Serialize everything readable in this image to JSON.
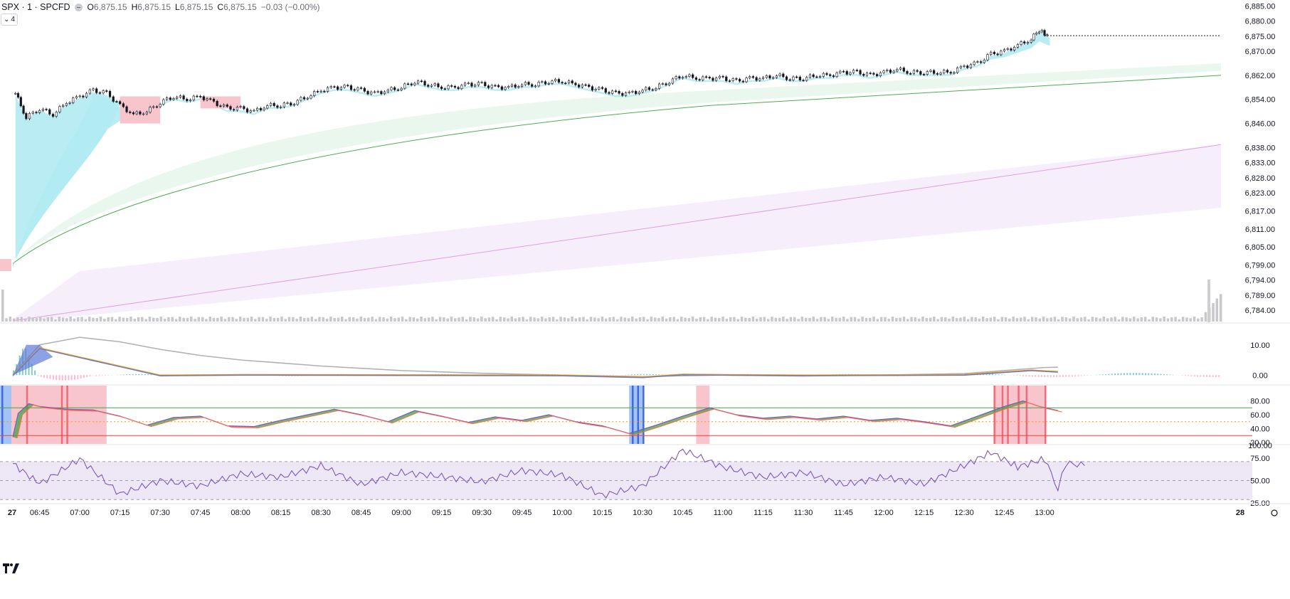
{
  "header": {
    "symbol": "SPX · 1 · SPCFD",
    "open_label": "O",
    "open_value": "6,875.15",
    "high_label": "H",
    "high_value": "6,875.15",
    "low_label": "L",
    "low_value": "6,875.15",
    "close_label": "C",
    "close_value": "6,875.15",
    "change": "−0.03 (−0.00%)",
    "collapse_label": "4"
  },
  "colors": {
    "up_fill": "#b2ebf2",
    "down_fill": "#f8c5cc",
    "green_band": "#eaf7ee",
    "green_line": "#4caf50",
    "purple_band": "#f6eefa",
    "purple_line": "#e39de8",
    "candle": "#131722",
    "macd_gray": "#b0b0b6",
    "macd_blue": "#5b7bd8",
    "macd_orange": "#ff9800",
    "rsi_purple": "#7e57c2",
    "obos_green": "#43a047",
    "obos_red": "#f44336"
  },
  "time_axis": {
    "labels": [
      "27",
      "06:45",
      "07:00",
      "07:15",
      "07:30",
      "07:45",
      "08:00",
      "08:15",
      "08:30",
      "08:45",
      "09:00",
      "09:15",
      "09:30",
      "09:45",
      "10:00",
      "10:15",
      "10:30",
      "10:45",
      "11:00",
      "11:15",
      "11:30",
      "11:45",
      "12:00",
      "12:15",
      "12:30",
      "12:45",
      "13:00",
      "28"
    ]
  },
  "chart_data": [
    {
      "type": "candlestick",
      "name": "price",
      "ylim": [
        6780,
        6887
      ],
      "y_ticks": [
        "6,885.00",
        "6,880.00",
        "6,875.00",
        "6,870.00",
        "6,862.00",
        "6,854.00",
        "6,846.00",
        "6,838.00",
        "6,833.00",
        "6,828.00",
        "6,823.00",
        "6,817.00",
        "6,811.00",
        "6,805.00",
        "6,799.00",
        "6,794.00",
        "6,789.00",
        "6,784.00"
      ],
      "y_tick_values": [
        6885,
        6880,
        6875,
        6870,
        6862,
        6854,
        6846,
        6838,
        6833,
        6828,
        6823,
        6817,
        6811,
        6805,
        6799,
        6794,
        6789,
        6784
      ],
      "time_range": [
        "06:35",
        "13:15"
      ],
      "close_path": [
        [
          "06:36",
          6856
        ],
        [
          "06:40",
          6848
        ],
        [
          "06:45",
          6851
        ],
        [
          "06:50",
          6849
        ],
        [
          "06:55",
          6853
        ],
        [
          "07:00",
          6855
        ],
        [
          "07:05",
          6857
        ],
        [
          "07:10",
          6856
        ],
        [
          "07:15",
          6852
        ],
        [
          "07:20",
          6849
        ],
        [
          "07:25",
          6850
        ],
        [
          "07:30",
          6853
        ],
        [
          "07:35",
          6855
        ],
        [
          "07:40",
          6854
        ],
        [
          "07:45",
          6855
        ],
        [
          "07:50",
          6853
        ],
        [
          "07:55",
          6851
        ],
        [
          "08:00",
          6851
        ],
        [
          "08:05",
          6850
        ],
        [
          "08:10",
          6852
        ],
        [
          "08:15",
          6852
        ],
        [
          "08:20",
          6853
        ],
        [
          "08:25",
          6855
        ],
        [
          "08:30",
          6857
        ],
        [
          "08:35",
          6858
        ],
        [
          "08:40",
          6858
        ],
        [
          "08:45",
          6857
        ],
        [
          "08:50",
          6856
        ],
        [
          "08:55",
          6857
        ],
        [
          "09:00",
          6858
        ],
        [
          "09:05",
          6860
        ],
        [
          "09:10",
          6859
        ],
        [
          "09:15",
          6858
        ],
        [
          "09:20",
          6858
        ],
        [
          "09:25",
          6859
        ],
        [
          "09:30",
          6859
        ],
        [
          "09:35",
          6858
        ],
        [
          "09:40",
          6858
        ],
        [
          "09:45",
          6859
        ],
        [
          "09:50",
          6859
        ],
        [
          "09:55",
          6860
        ],
        [
          "10:00",
          6860
        ],
        [
          "10:05",
          6859
        ],
        [
          "10:10",
          6858
        ],
        [
          "10:15",
          6857
        ],
        [
          "10:20",
          6856
        ],
        [
          "10:25",
          6856
        ],
        [
          "10:30",
          6857
        ],
        [
          "10:35",
          6858
        ],
        [
          "10:40",
          6860
        ],
        [
          "10:45",
          6862
        ],
        [
          "10:50",
          6861
        ],
        [
          "10:55",
          6861
        ],
        [
          "11:00",
          6861
        ],
        [
          "11:05",
          6860
        ],
        [
          "11:10",
          6861
        ],
        [
          "11:15",
          6861
        ],
        [
          "11:20",
          6862
        ],
        [
          "11:25",
          6861
        ],
        [
          "11:30",
          6861
        ],
        [
          "11:35",
          6862
        ],
        [
          "11:40",
          6862
        ],
        [
          "11:45",
          6863
        ],
        [
          "11:50",
          6863
        ],
        [
          "11:55",
          6862
        ],
        [
          "12:00",
          6863
        ],
        [
          "12:05",
          6864
        ],
        [
          "12:10",
          6863
        ],
        [
          "12:15",
          6863
        ],
        [
          "12:20",
          6863
        ],
        [
          "12:25",
          6863
        ],
        [
          "12:30",
          6865
        ],
        [
          "12:35",
          6866
        ],
        [
          "12:40",
          6869
        ],
        [
          "12:45",
          6870
        ],
        [
          "12:50",
          6872
        ],
        [
          "12:55",
          6874
        ],
        [
          "12:58",
          6877
        ],
        [
          "13:00",
          6876
        ],
        [
          "13:02",
          6875
        ]
      ],
      "last_price": 6875.15
    },
    {
      "type": "line",
      "name": "macd",
      "ylim": [
        -3,
        17
      ],
      "y_ticks": [
        "10.00",
        "0.00"
      ],
      "y_tick_values": [
        10,
        0
      ],
      "series_gray": [
        [
          "06:35",
          0
        ],
        [
          "06:45",
          10
        ],
        [
          "07:00",
          12.5
        ],
        [
          "07:15",
          11
        ],
        [
          "07:30",
          8.5
        ],
        [
          "07:45",
          6.5
        ],
        [
          "08:00",
          5
        ],
        [
          "08:30",
          3
        ],
        [
          "09:00",
          1.5
        ],
        [
          "09:30",
          0.6
        ],
        [
          "10:00",
          0
        ],
        [
          "10:30",
          -0.5
        ],
        [
          "11:00",
          0
        ],
        [
          "11:30",
          -0.3
        ],
        [
          "12:00",
          0
        ],
        [
          "12:30",
          0.5
        ],
        [
          "13:00",
          2.5
        ],
        [
          "13:05",
          2.6
        ]
      ],
      "series_blue": [
        [
          "06:35",
          0
        ],
        [
          "06:45",
          9
        ],
        [
          "07:00",
          6
        ],
        [
          "07:15",
          3
        ],
        [
          "07:30",
          0
        ],
        [
          "08:00",
          0.2
        ],
        [
          "09:00",
          0.1
        ],
        [
          "10:00",
          0
        ],
        [
          "10:30",
          -0.6
        ],
        [
          "10:45",
          0.3
        ],
        [
          "11:30",
          0
        ],
        [
          "12:30",
          0.2
        ],
        [
          "12:55",
          1.7
        ],
        [
          "13:05",
          1.2
        ]
      ]
    },
    {
      "type": "line",
      "name": "stochastic",
      "ylim": [
        18,
        102
      ],
      "y_ticks": [
        "80.00",
        "60.00",
        "40.00",
        "20.00"
      ],
      "y_tick_values": [
        80,
        60,
        40,
        20
      ],
      "overbought": 70,
      "oversold": 30,
      "midline": 50,
      "series": [
        [
          "06:35",
          28
        ],
        [
          "06:37",
          62
        ],
        [
          "06:41",
          76
        ],
        [
          "06:45",
          72
        ],
        [
          "06:55",
          68
        ],
        [
          "07:05",
          67
        ],
        [
          "07:15",
          58
        ],
        [
          "07:25",
          45
        ],
        [
          "07:35",
          56
        ],
        [
          "07:45",
          58
        ],
        [
          "07:55",
          44
        ],
        [
          "08:05",
          43
        ],
        [
          "08:15",
          52
        ],
        [
          "08:25",
          60
        ],
        [
          "08:35",
          68
        ],
        [
          "08:45",
          60
        ],
        [
          "08:55",
          50
        ],
        [
          "09:05",
          66
        ],
        [
          "09:15",
          58
        ],
        [
          "09:25",
          49
        ],
        [
          "09:35",
          57
        ],
        [
          "09:45",
          52
        ],
        [
          "09:55",
          60
        ],
        [
          "10:05",
          50
        ],
        [
          "10:15",
          44
        ],
        [
          "10:25",
          33
        ],
        [
          "10:35",
          45
        ],
        [
          "10:45",
          58
        ],
        [
          "10:55",
          70
        ],
        [
          "11:05",
          60
        ],
        [
          "11:15",
          55
        ],
        [
          "11:25",
          58
        ],
        [
          "11:35",
          54
        ],
        [
          "11:45",
          58
        ],
        [
          "11:55",
          52
        ],
        [
          "12:05",
          55
        ],
        [
          "12:15",
          50
        ],
        [
          "12:25",
          44
        ],
        [
          "12:35",
          58
        ],
        [
          "12:45",
          72
        ],
        [
          "12:52",
          80
        ],
        [
          "12:58",
          72
        ],
        [
          "13:05",
          66
        ]
      ]
    },
    {
      "type": "line",
      "name": "rsi",
      "ylim": [
        18,
        102
      ],
      "y_ticks": [
        "100.00",
        "75.00",
        "50.00",
        "25.00"
      ],
      "y_tick_values": [
        100,
        75,
        50,
        25
      ],
      "band": [
        30,
        70
      ],
      "series": [
        [
          "06:35",
          75
        ],
        [
          "06:45",
          45
        ],
        [
          "07:00",
          82
        ],
        [
          "07:15",
          30
        ],
        [
          "07:30",
          50
        ],
        [
          "07:45",
          42
        ],
        [
          "08:00",
          60
        ],
        [
          "08:15",
          55
        ],
        [
          "08:30",
          72
        ],
        [
          "08:45",
          44
        ],
        [
          "09:00",
          62
        ],
        [
          "09:15",
          56
        ],
        [
          "09:30",
          48
        ],
        [
          "09:45",
          65
        ],
        [
          "10:00",
          58
        ],
        [
          "10:15",
          28
        ],
        [
          "10:30",
          42
        ],
        [
          "10:45",
          95
        ],
        [
          "11:00",
          70
        ],
        [
          "11:15",
          55
        ],
        [
          "11:30",
          62
        ],
        [
          "11:45",
          44
        ],
        [
          "12:00",
          55
        ],
        [
          "12:15",
          45
        ],
        [
          "12:30",
          72
        ],
        [
          "12:40",
          92
        ],
        [
          "12:50",
          70
        ],
        [
          "13:00",
          82
        ],
        [
          "13:05",
          40
        ],
        [
          "13:08",
          76
        ],
        [
          "13:15",
          72
        ]
      ]
    }
  ]
}
